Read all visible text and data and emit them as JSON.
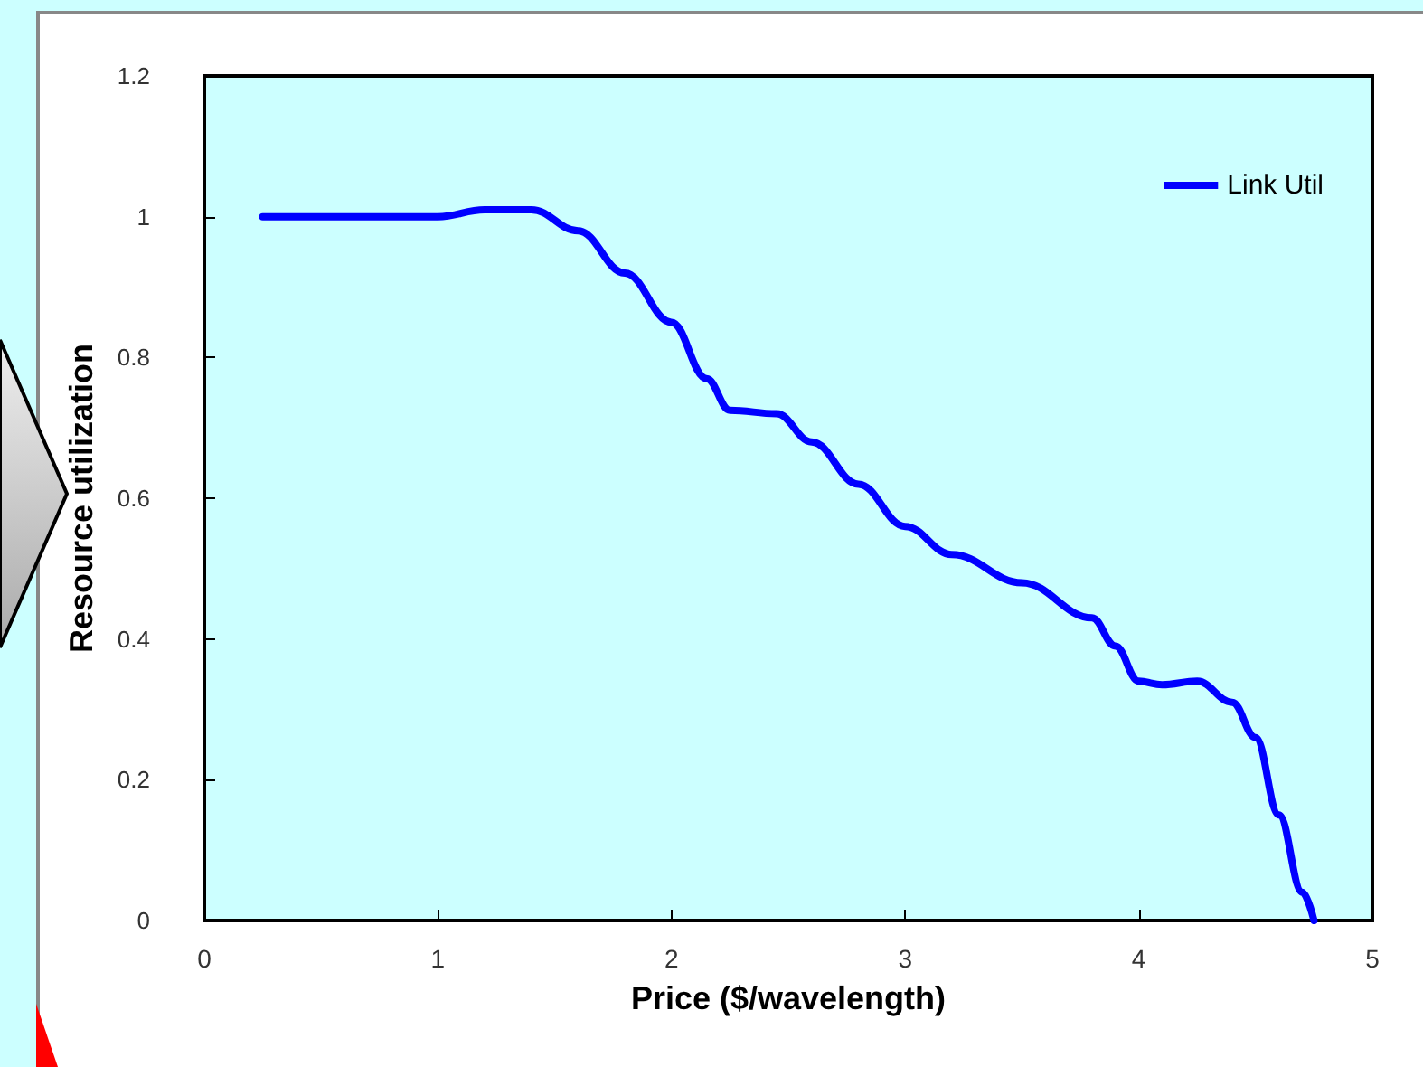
{
  "chart_data": {
    "type": "line",
    "xlabel": "Price ($/wavelength)",
    "ylabel": "Resource utilization",
    "x": [
      0.25,
      1.0,
      1.2,
      1.4,
      1.6,
      1.8,
      2.0,
      2.15,
      2.25,
      2.45,
      2.6,
      2.8,
      3.0,
      3.2,
      3.5,
      3.8,
      3.9,
      4.0,
      4.1,
      4.25,
      4.4,
      4.5,
      4.6,
      4.7,
      4.75
    ],
    "series": [
      {
        "name": "Link Util",
        "color": "#0000ff",
        "values": [
          1.0,
          1.0,
          1.01,
          1.01,
          0.98,
          0.92,
          0.85,
          0.77,
          0.725,
          0.72,
          0.68,
          0.62,
          0.56,
          0.52,
          0.48,
          0.43,
          0.39,
          0.34,
          0.335,
          0.34,
          0.31,
          0.26,
          0.15,
          0.04,
          0.0
        ]
      }
    ],
    "xlim": [
      0,
      5
    ],
    "xticks": [
      0,
      1,
      2,
      3,
      4,
      5
    ],
    "ylim": [
      0,
      1.2
    ],
    "yticks": [
      0,
      0.2,
      0.4,
      0.6,
      0.8,
      1,
      1.2
    ],
    "grid": false,
    "legend": "top right",
    "marker": "none",
    "line_style": "solid"
  }
}
